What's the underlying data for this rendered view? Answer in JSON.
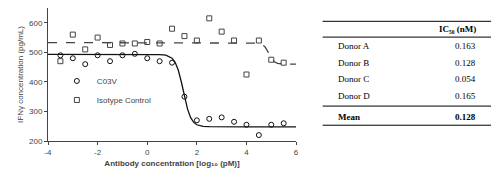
{
  "chart_data": {
    "type": "scatter",
    "xlabel": "Antibody concentration [log₁₀ (pM)]",
    "ylabel": "IFNγ concentration (pg/mL)",
    "xlim": [
      -4,
      6
    ],
    "ylim": [
      200,
      650
    ],
    "xticks": [
      -4,
      -2,
      0,
      2,
      4,
      6
    ],
    "yticks": [
      200,
      300,
      400,
      500,
      600
    ],
    "grid": false,
    "legend": "center left",
    "background_color": "#ffffff",
    "series": [
      {
        "type": "line",
        "line_style": "dashed",
        "color": "#444444",
        "x": [
          -4,
          0,
          3.5,
          4,
          4.25,
          4.5,
          4.625,
          4.75,
          4.875,
          5,
          5.125,
          5.25,
          5.5,
          5.75,
          6
        ],
        "values": [
          533.0,
          533.0,
          533.0,
          533.0,
          532.8,
          531.2,
          527.6,
          518.3,
          500.7,
          480.8,
          468.2,
          462.8,
          460.3,
          460.0,
          460.0
        ]
      },
      {
        "type": "line",
        "line_style": "solid",
        "color": "#111111",
        "x": [
          -4,
          -2,
          0,
          0.25,
          0.5,
          0.75,
          1,
          1.125,
          1.25,
          1.375,
          1.5,
          1.625,
          1.75,
          1.875,
          2,
          2.25,
          2.5,
          2.75,
          3,
          4,
          6
        ],
        "values": [
          493.0,
          493.0,
          493.0,
          492.9,
          492.5,
          490.3,
          480.2,
          466.2,
          440.1,
          399.6,
          350.9,
          307.9,
          278.9,
          262.9,
          254.9,
          249.4,
          248.3,
          248.1,
          248.0,
          248.0,
          248.0
        ]
      },
      {
        "type": "scatter",
        "name": "C03V",
        "marker": "circle-open",
        "color": "#111111",
        "x": [
          -3.5,
          -3.0,
          -2.5,
          -2.0,
          -1.5,
          -1.0,
          -0.5,
          0.0,
          0.5,
          1.0,
          1.5,
          2.0,
          2.5,
          3.0,
          3.5,
          4.0,
          4.5,
          5.0,
          5.5
        ],
        "values": [
          490,
          480,
          460,
          490,
          470,
          490,
          495,
          480,
          470,
          465,
          350,
          270,
          275,
          280,
          265,
          255,
          220,
          255,
          260
        ]
      },
      {
        "type": "scatter",
        "name": "Isotype Control",
        "marker": "square-open",
        "color": "#444444",
        "x": [
          -3.5,
          -3.0,
          -2.5,
          -2.0,
          -1.5,
          -1.0,
          -0.5,
          0.0,
          0.5,
          1.0,
          1.5,
          2.0,
          2.5,
          3.0,
          3.5,
          4.0,
          4.5,
          5.0,
          5.5
        ],
        "values": [
          470,
          560,
          510,
          550,
          525,
          530,
          530,
          535,
          530,
          580,
          555,
          540,
          615,
          570,
          540,
          425,
          540,
          475,
          465
        ]
      }
    ],
    "table": {
      "header": "IC₅₀ (nM)",
      "rows": [
        "Donor A",
        "Donor B",
        "Donor C",
        "Donor D"
      ],
      "values": [
        "0.163",
        "0.128",
        "0.054",
        "0.165"
      ],
      "mean_label": "Mean",
      "mean_value": "0.128"
    }
  }
}
